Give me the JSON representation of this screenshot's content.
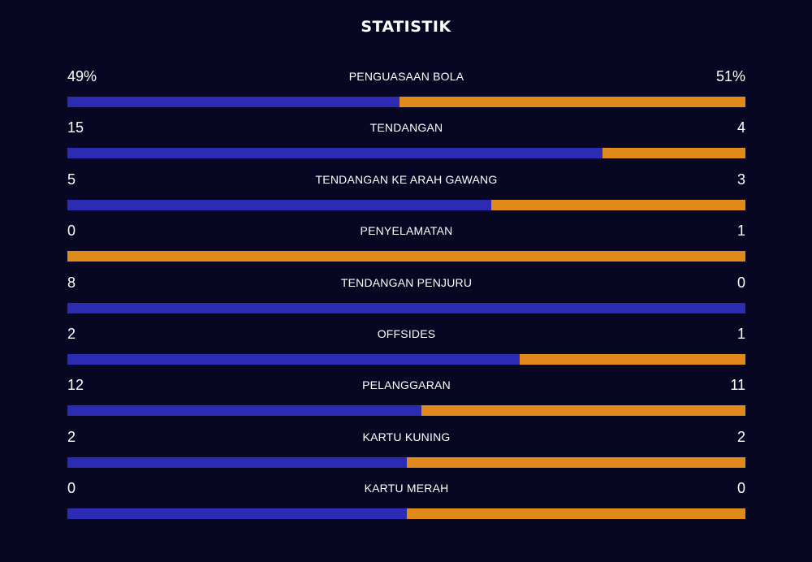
{
  "title": "STATISTIK",
  "colors": {
    "home": "#2b2bb4",
    "away": "#e08a1c",
    "background": "#070723"
  },
  "stats": [
    {
      "label": "PENGUASAAN BOLA",
      "home_display": "49%",
      "away_display": "51%",
      "home_value": 49,
      "away_value": 51
    },
    {
      "label": "TENDANGAN",
      "home_display": "15",
      "away_display": "4",
      "home_value": 15,
      "away_value": 4
    },
    {
      "label": "TENDANGAN KE ARAH GAWANG",
      "home_display": "5",
      "away_display": "3",
      "home_value": 5,
      "away_value": 3
    },
    {
      "label": "PENYELAMATAN",
      "home_display": "0",
      "away_display": "1",
      "home_value": 0,
      "away_value": 1
    },
    {
      "label": "TENDANGAN PENJURU",
      "home_display": "8",
      "away_display": "0",
      "home_value": 8,
      "away_value": 0
    },
    {
      "label": "OFFSIDES",
      "home_display": "2",
      "away_display": "1",
      "home_value": 2,
      "away_value": 1
    },
    {
      "label": "PELANGGARAN",
      "home_display": "12",
      "away_display": "11",
      "home_value": 12,
      "away_value": 11
    },
    {
      "label": "KARTU KUNING",
      "home_display": "2",
      "away_display": "2",
      "home_value": 2,
      "away_value": 2
    },
    {
      "label": "KARTU MERAH",
      "home_display": "0",
      "away_display": "0",
      "home_value": 0,
      "away_value": 0
    }
  ]
}
